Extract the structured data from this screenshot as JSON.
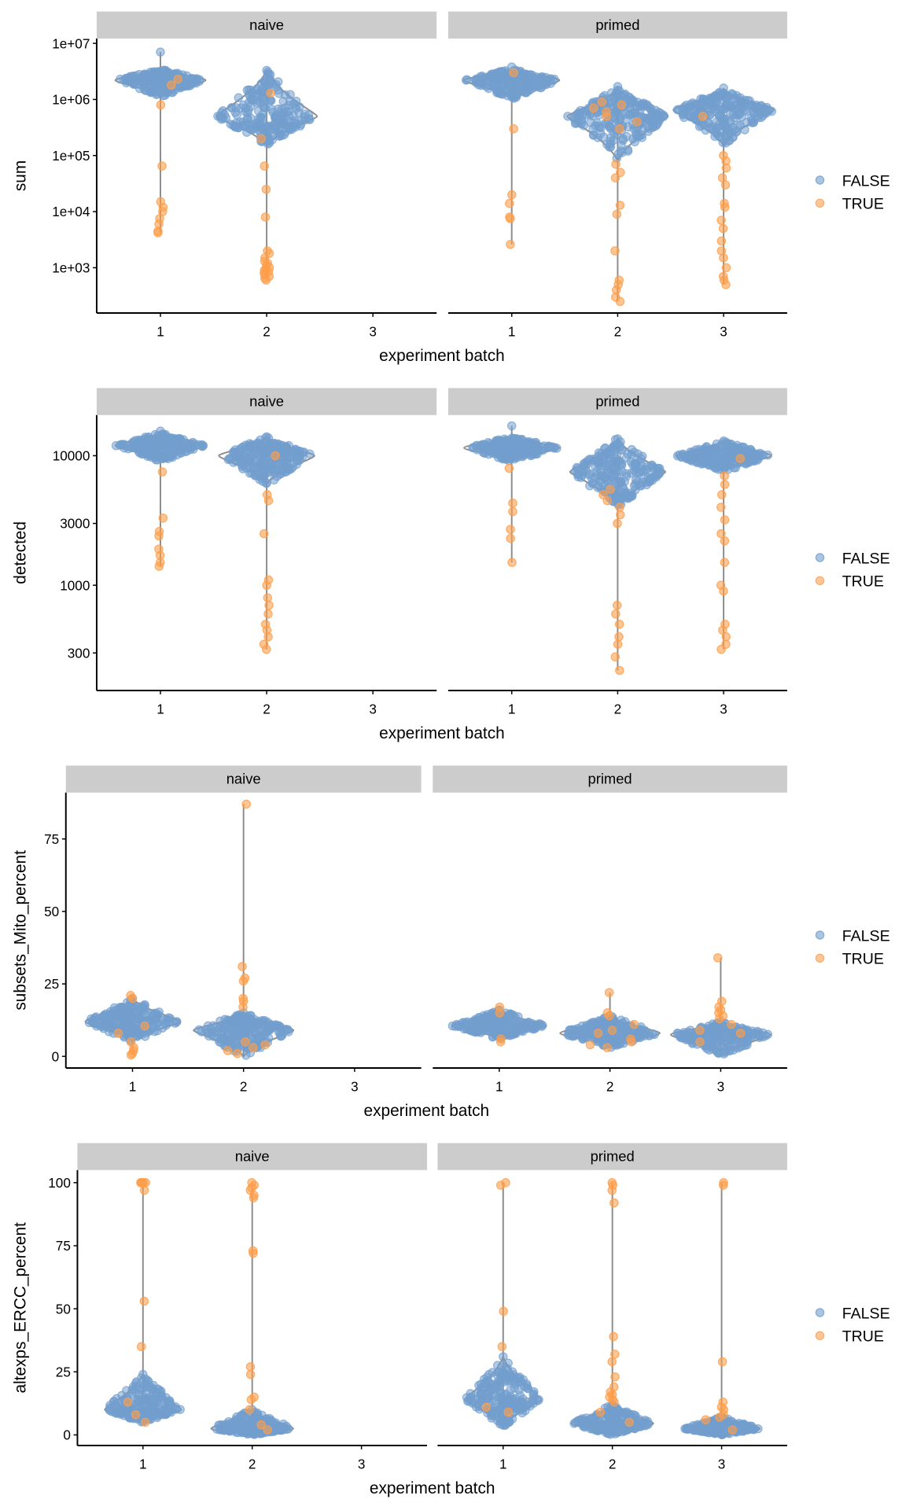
{
  "chart_data": [
    {
      "type": "violin",
      "ylabel": "sum",
      "xlabel": "experiment batch",
      "yscale": "log10",
      "ylim": [
        156,
        12200000
      ],
      "yticks": [
        1000,
        10000,
        100000,
        1000000,
        10000000
      ],
      "ytick_labels": [
        "1e+03",
        "1e+04",
        "1e+05",
        "1e+06",
        "1e+07"
      ],
      "facets": [
        {
          "name": "naive",
          "categories": [
            "1",
            "2",
            "3"
          ],
          "groups": [
            {
              "category": "1",
              "false": {
                "lo": 1100000,
                "hi": 3500000,
                "center": 2200000,
                "max": 7000000
              },
              "true_values": [
                2300000,
                1800000,
                800000,
                65000,
                15000,
                12000,
                10000,
                7500,
                6000,
                4500,
                4200
              ]
            },
            {
              "category": "2",
              "false": {
                "lo": 150000,
                "hi": 3300000,
                "center": 500000,
                "max": 3300000
              },
              "true_values": [
                1300000,
                200000,
                65000,
                25000,
                8000,
                2000,
                1800,
                1500,
                1300,
                1200,
                1100,
                1000,
                950,
                900,
                850,
                800,
                750,
                700,
                650,
                600
              ]
            }
          ]
        },
        {
          "name": "primed",
          "categories": [
            "1",
            "2",
            "3"
          ],
          "groups": [
            {
              "category": "1",
              "false": {
                "lo": 1000000,
                "hi": 3500000,
                "center": 2200000,
                "max": 3800000
              },
              "true_values": [
                3000000,
                300000,
                20000,
                14000,
                8000,
                7500,
                2600
              ]
            },
            {
              "category": "2",
              "false": {
                "lo": 80000,
                "hi": 1600000,
                "center": 500000,
                "max": 1700000
              },
              "true_values": [
                900000,
                800000,
                700000,
                600000,
                500000,
                400000,
                300000,
                70000,
                50000,
                40000,
                13000,
                9000,
                2000,
                600,
                500,
                400,
                300,
                250
              ]
            },
            {
              "category": "3",
              "false": {
                "lo": 150000,
                "hi": 1500000,
                "center": 650000,
                "max": 1600000
              },
              "true_values": [
                500000,
                100000,
                80000,
                60000,
                40000,
                30000,
                14000,
                12000,
                7000,
                5000,
                3000,
                2000,
                1500,
                1000,
                700,
                600,
                500
              ]
            }
          ]
        }
      ],
      "legend": {
        "position": "right",
        "entries": [
          {
            "label": "FALSE",
            "color": "#729ECE"
          },
          {
            "label": "TRUE",
            "color": "#FF9E4A"
          }
        ]
      }
    },
    {
      "type": "violin",
      "ylabel": "detected",
      "xlabel": "experiment batch",
      "yscale": "log10",
      "ylim": [
        154,
        20600
      ],
      "yticks": [
        300,
        1000,
        3000,
        10000
      ],
      "ytick_labels": [
        "300",
        "1000",
        "3000",
        "10000"
      ],
      "facets": [
        {
          "name": "naive",
          "categories": [
            "1",
            "2",
            "3"
          ],
          "groups": [
            {
              "category": "1",
              "false": {
                "lo": 9000,
                "hi": 15000,
                "center": 12000,
                "max": 15500
              },
              "true_values": [
                7500,
                3300,
                2600,
                2400,
                1900,
                1700,
                1500,
                1400
              ]
            },
            {
              "category": "2",
              "false": {
                "lo": 6000,
                "hi": 14000,
                "center": 10000,
                "max": 14000
              },
              "true_values": [
                10000,
                5000,
                4500,
                2500,
                1100,
                1000,
                800,
                700,
                600,
                500,
                450,
                400,
                350,
                320
              ]
            }
          ]
        },
        {
          "name": "primed",
          "categories": [
            "1",
            "2",
            "3"
          ],
          "groups": [
            {
              "category": "1",
              "false": {
                "lo": 9000,
                "hi": 14000,
                "center": 11500,
                "max": 17000
              },
              "true_values": [
                8000,
                4300,
                3700,
                2700,
                2300,
                1500
              ]
            },
            {
              "category": "2",
              "false": {
                "lo": 4000,
                "hi": 13500,
                "center": 7500,
                "max": 13500
              },
              "true_values": [
                5500,
                5000,
                4500,
                4000,
                3500,
                3000,
                700,
                600,
                500,
                400,
                350,
                280,
                220
              ]
            },
            {
              "category": "3",
              "false": {
                "lo": 7500,
                "hi": 13000,
                "center": 10000,
                "max": 13000
              },
              "true_values": [
                9500,
                7000,
                6000,
                5000,
                4000,
                3200,
                2500,
                2200,
                1500,
                1000,
                900,
                500,
                450,
                400,
                350,
                320
              ]
            }
          ]
        }
      ],
      "legend": {
        "position": "right",
        "entries": [
          {
            "label": "FALSE",
            "color": "#729ECE"
          },
          {
            "label": "TRUE",
            "color": "#FF9E4A"
          }
        ]
      }
    },
    {
      "type": "violin",
      "ylabel": "subsets_Mito_percent",
      "xlabel": "experiment batch",
      "yscale": "linear",
      "ylim": [
        -4,
        91
      ],
      "yticks": [
        0,
        25,
        50,
        75
      ],
      "ytick_labels": [
        "0",
        "25",
        "50",
        "75"
      ],
      "facets": [
        {
          "name": "naive",
          "categories": [
            "1",
            "2",
            "3"
          ],
          "groups": [
            {
              "category": "1",
              "false": {
                "lo": 5,
                "hi": 20,
                "center": 12,
                "max": 20
              },
              "true_values": [
                21,
                20,
                10.5,
                8,
                5,
                3,
                2,
                1,
                0.5
              ]
            },
            {
              "category": "2",
              "false": {
                "lo": 0,
                "hi": 15,
                "center": 9,
                "max": 15
              },
              "true_values": [
                87,
                31,
                27,
                26,
                20,
                19,
                17,
                5,
                4,
                3,
                2,
                1
              ]
            }
          ]
        },
        {
          "name": "primed",
          "categories": [
            "1",
            "2",
            "3"
          ],
          "groups": [
            {
              "category": "1",
              "false": {
                "lo": 6,
                "hi": 16,
                "center": 10.5,
                "max": 16
              },
              "true_values": [
                17,
                15,
                6,
                5
              ]
            },
            {
              "category": "2",
              "false": {
                "lo": 3,
                "hi": 14,
                "center": 8,
                "max": 14
              },
              "true_values": [
                22,
                15,
                14,
                11,
                9,
                8,
                6,
                5,
                4,
                3
              ]
            },
            {
              "category": "3",
              "false": {
                "lo": 0,
                "hi": 12,
                "center": 7.5,
                "max": 12
              },
              "true_values": [
                34,
                19,
                17,
                16,
                15,
                14,
                13,
                11,
                9,
                8,
                5
              ]
            }
          ]
        }
      ],
      "legend": {
        "position": "right",
        "entries": [
          {
            "label": "FALSE",
            "color": "#729ECE"
          },
          {
            "label": "TRUE",
            "color": "#FF9E4A"
          }
        ]
      }
    },
    {
      "type": "violin",
      "ylabel": "altexps_ERCC_percent",
      "xlabel": "experiment batch",
      "yscale": "linear",
      "ylim": [
        -4.2,
        105
      ],
      "yticks": [
        0,
        25,
        50,
        75,
        100
      ],
      "ytick_labels": [
        "0",
        "25",
        "50",
        "75",
        "100"
      ],
      "facets": [
        {
          "name": "naive",
          "categories": [
            "1",
            "2",
            "3"
          ],
          "groups": [
            {
              "category": "1",
              "false": {
                "lo": 5,
                "hi": 24,
                "center": 10,
                "max": 24
              },
              "true_values": [
                100,
                100,
                100,
                100,
                100,
                97,
                53,
                35,
                13,
                8,
                5
              ]
            },
            {
              "category": "2",
              "false": {
                "lo": 0,
                "hi": 10,
                "center": 2.5,
                "max": 10
              },
              "true_values": [
                100,
                99,
                98,
                97,
                95,
                94,
                73,
                72,
                27,
                24,
                15,
                14,
                10,
                4,
                2
              ]
            }
          ]
        },
        {
          "name": "primed",
          "categories": [
            "1",
            "2",
            "3"
          ],
          "groups": [
            {
              "category": "1",
              "false": {
                "lo": 3,
                "hi": 31,
                "center": 14,
                "max": 31
              },
              "true_values": [
                100,
                99,
                49,
                35,
                11,
                9
              ]
            },
            {
              "category": "2",
              "false": {
                "lo": 0,
                "hi": 12,
                "center": 4.5,
                "max": 12
              },
              "true_values": [
                100,
                99,
                97,
                92,
                39,
                32,
                29,
                23,
                19,
                17,
                16,
                15,
                14,
                13,
                9,
                5
              ]
            },
            {
              "category": "3",
              "false": {
                "lo": 0,
                "hi": 7,
                "center": 2.5,
                "max": 7
              },
              "true_values": [
                100,
                99,
                29,
                13,
                11,
                10,
                8,
                7,
                6,
                2
              ]
            }
          ]
        }
      ],
      "legend": {
        "position": "right",
        "entries": [
          {
            "label": "FALSE",
            "color": "#729ECE"
          },
          {
            "label": "TRUE",
            "color": "#FF9E4A"
          }
        ]
      }
    }
  ]
}
